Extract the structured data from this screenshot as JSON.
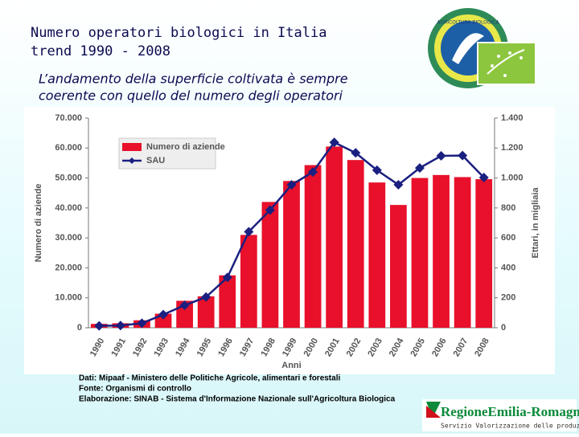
{
  "slide": {
    "title": [
      "Numero operatori biologici in Italia",
      "trend 1990 - 2008"
    ],
    "subtitle": [
      "L’andamento della superficie coltivata è sempre",
      "coerente con quello del numero degli operatori"
    ],
    "footer": [
      "Dati: Mipaaf - Ministero delle Politiche Agricole, alimentari e forestali",
      "Fonte: Organismi di controllo",
      "Elaborazione: SINAB - Sistema d'Informazione Nazionale sull'Agricoltura Biologica"
    ],
    "badge": "AGRICOLTURA BIOLOGICA",
    "logo": "RegioneEmilia-Romagna",
    "logo_caption": "Servizio Valorizzazione delle produzioni"
  },
  "chart_data": {
    "type": "bar-line",
    "categories": [
      "1990",
      "1991",
      "1992",
      "1993",
      "1994",
      "1995",
      "1996",
      "1997",
      "1998",
      "1999",
      "2000",
      "2001",
      "2002",
      "2003",
      "2004",
      "2005",
      "2006",
      "2007",
      "2008"
    ],
    "series": [
      {
        "name": "Numero di aziende",
        "color": "#e8102a",
        "type": "bar",
        "values": [
          1300,
          1500,
          2500,
          4700,
          9000,
          10500,
          17500,
          31000,
          42000,
          49000,
          54300,
          60500,
          56000,
          48500,
          41000,
          50000,
          51000,
          50300,
          49600
        ]
      },
      {
        "name": "SAU",
        "color": "#1a1f80",
        "type": "line",
        "axis": "y2",
        "values": [
          13,
          15,
          30,
          88,
          150,
          205,
          336,
          641,
          786,
          954,
          1040,
          1238,
          1168,
          1052,
          955,
          1067,
          1148,
          1150,
          1003
        ]
      }
    ],
    "ylabel": "Numero di aziende",
    "y2label": "Ettari, in migliaia",
    "xlabel": "Anni",
    "ylim": [
      0,
      70000
    ],
    "yticks": [
      0,
      {
        "value": 10000,
        "label": "10.000"
      },
      {
        "value": 20000,
        "label": "20.000"
      },
      {
        "value": 30000,
        "label": "30.000"
      },
      {
        "value": 40000,
        "label": "40.000"
      },
      {
        "value": 50000,
        "label": "50.000"
      },
      {
        "value": 60000,
        "label": "60.000"
      },
      {
        "value": 70000,
        "label": "70.000"
      }
    ],
    "y2lim": [
      0,
      1400
    ],
    "y2ticks": [
      0,
      200,
      400,
      600,
      800,
      {
        "value": 1000,
        "label": "1.000"
      },
      {
        "value": 1200,
        "label": "1.200"
      },
      {
        "value": 1400,
        "label": "1.400"
      }
    ]
  }
}
